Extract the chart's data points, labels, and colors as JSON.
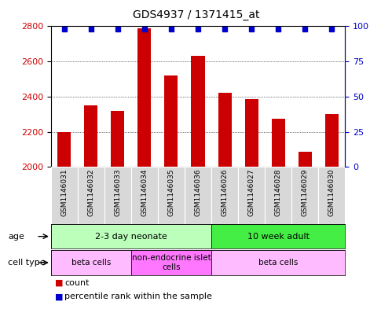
{
  "title": "GDS4937 / 1371415_at",
  "samples": [
    "GSM1146031",
    "GSM1146032",
    "GSM1146033",
    "GSM1146034",
    "GSM1146035",
    "GSM1146036",
    "GSM1146026",
    "GSM1146027",
    "GSM1146028",
    "GSM1146029",
    "GSM1146030"
  ],
  "counts": [
    2200,
    2350,
    2320,
    2790,
    2520,
    2630,
    2420,
    2385,
    2275,
    2085,
    2300
  ],
  "ylim_left": [
    2000,
    2800
  ],
  "ylim_right": [
    0,
    100
  ],
  "yticks_left": [
    2000,
    2200,
    2400,
    2600,
    2800
  ],
  "yticks_right": [
    0,
    25,
    50,
    75,
    100
  ],
  "bar_color": "#cc0000",
  "dot_color": "#0000cc",
  "bar_width": 0.5,
  "age_groups": [
    {
      "label": "2-3 day neonate",
      "start": 0,
      "end": 6,
      "color": "#bbffbb"
    },
    {
      "label": "10 week adult",
      "start": 6,
      "end": 11,
      "color": "#44ee44"
    }
  ],
  "cell_type_groups": [
    {
      "label": "beta cells",
      "start": 0,
      "end": 3,
      "color": "#ffbbff"
    },
    {
      "label": "non-endocrine islet\ncells",
      "start": 3,
      "end": 6,
      "color": "#ff77ff"
    },
    {
      "label": "beta cells",
      "start": 6,
      "end": 11,
      "color": "#ffbbff"
    }
  ],
  "legend_items": [
    {
      "label": "count",
      "color": "#cc0000"
    },
    {
      "label": "percentile rank within the sample",
      "color": "#0000cc"
    }
  ],
  "bg_color": "#ffffff",
  "title_fontsize": 10,
  "axis_fontsize": 8,
  "label_fontsize": 7,
  "row_label_fontsize": 8,
  "sample_fontsize": 6.5
}
